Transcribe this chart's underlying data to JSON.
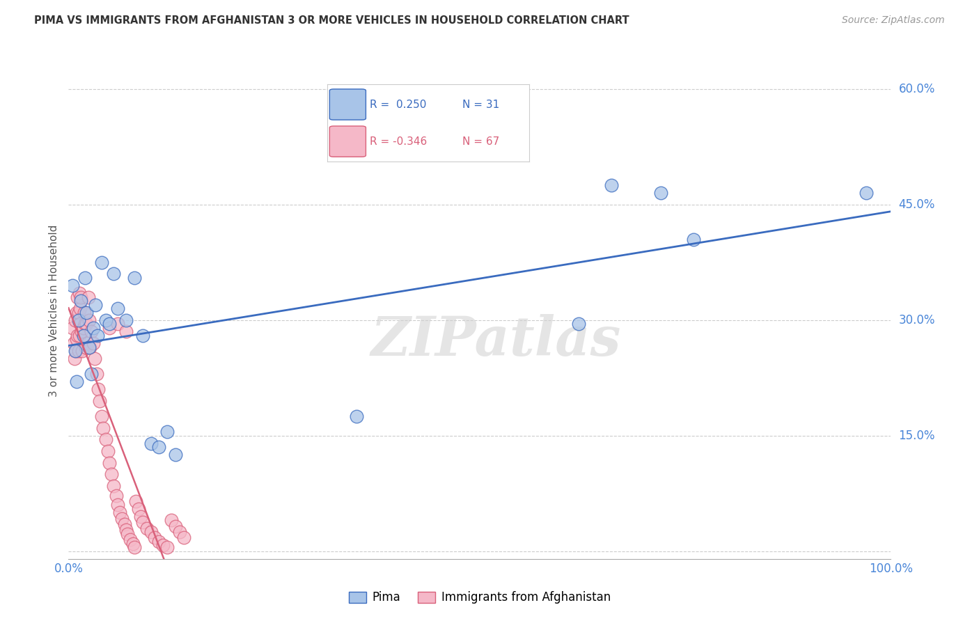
{
  "title": "PIMA VS IMMIGRANTS FROM AFGHANISTAN 3 OR MORE VEHICLES IN HOUSEHOLD CORRELATION CHART",
  "source": "Source: ZipAtlas.com",
  "ylabel": "3 or more Vehicles in Household",
  "xlim": [
    0.0,
    1.0
  ],
  "ylim": [
    -0.01,
    0.635
  ],
  "yticks": [
    0.0,
    0.15,
    0.3,
    0.45,
    0.6
  ],
  "xticks": [
    0.0,
    1.0
  ],
  "background_color": "#ffffff",
  "watermark": "ZIPatlas",
  "pima_color": "#a8c4e8",
  "afghanistan_color": "#f5b8c8",
  "pima_line_color": "#3a6bbf",
  "afghanistan_line_color": "#d9607a",
  "pima_x": [
    0.005,
    0.008,
    0.01,
    0.012,
    0.015,
    0.018,
    0.02,
    0.022,
    0.025,
    0.028,
    0.03,
    0.033,
    0.035,
    0.04,
    0.045,
    0.05,
    0.055,
    0.06,
    0.07,
    0.08,
    0.09,
    0.1,
    0.11,
    0.12,
    0.13,
    0.35,
    0.62,
    0.66,
    0.72,
    0.76,
    0.97
  ],
  "pima_y": [
    0.345,
    0.26,
    0.22,
    0.3,
    0.325,
    0.28,
    0.355,
    0.31,
    0.265,
    0.23,
    0.29,
    0.32,
    0.28,
    0.375,
    0.3,
    0.295,
    0.36,
    0.315,
    0.3,
    0.355,
    0.28,
    0.14,
    0.135,
    0.155,
    0.125,
    0.175,
    0.295,
    0.475,
    0.465,
    0.405,
    0.465
  ],
  "afghanistan_x": [
    0.005,
    0.006,
    0.007,
    0.008,
    0.009,
    0.01,
    0.01,
    0.011,
    0.011,
    0.012,
    0.012,
    0.013,
    0.013,
    0.014,
    0.014,
    0.015,
    0.016,
    0.017,
    0.018,
    0.019,
    0.02,
    0.021,
    0.022,
    0.023,
    0.024,
    0.025,
    0.026,
    0.028,
    0.03,
    0.032,
    0.034,
    0.036,
    0.038,
    0.04,
    0.042,
    0.045,
    0.048,
    0.05,
    0.052,
    0.055,
    0.058,
    0.06,
    0.062,
    0.065,
    0.068,
    0.07,
    0.072,
    0.075,
    0.078,
    0.08,
    0.082,
    0.085,
    0.088,
    0.09,
    0.095,
    0.1,
    0.105,
    0.11,
    0.115,
    0.12,
    0.125,
    0.13,
    0.135,
    0.14,
    0.05,
    0.06,
    0.07
  ],
  "afghanistan_y": [
    0.29,
    0.27,
    0.25,
    0.3,
    0.26,
    0.31,
    0.275,
    0.33,
    0.28,
    0.26,
    0.31,
    0.28,
    0.335,
    0.295,
    0.315,
    0.33,
    0.285,
    0.26,
    0.29,
    0.31,
    0.295,
    0.265,
    0.295,
    0.27,
    0.33,
    0.3,
    0.265,
    0.285,
    0.27,
    0.25,
    0.23,
    0.21,
    0.195,
    0.175,
    0.16,
    0.145,
    0.13,
    0.115,
    0.1,
    0.085,
    0.072,
    0.06,
    0.05,
    0.042,
    0.035,
    0.028,
    0.022,
    0.015,
    0.01,
    0.005,
    0.065,
    0.055,
    0.045,
    0.038,
    0.03,
    0.025,
    0.018,
    0.012,
    0.008,
    0.005,
    0.04,
    0.032,
    0.025,
    0.018,
    0.29,
    0.295,
    0.285
  ]
}
